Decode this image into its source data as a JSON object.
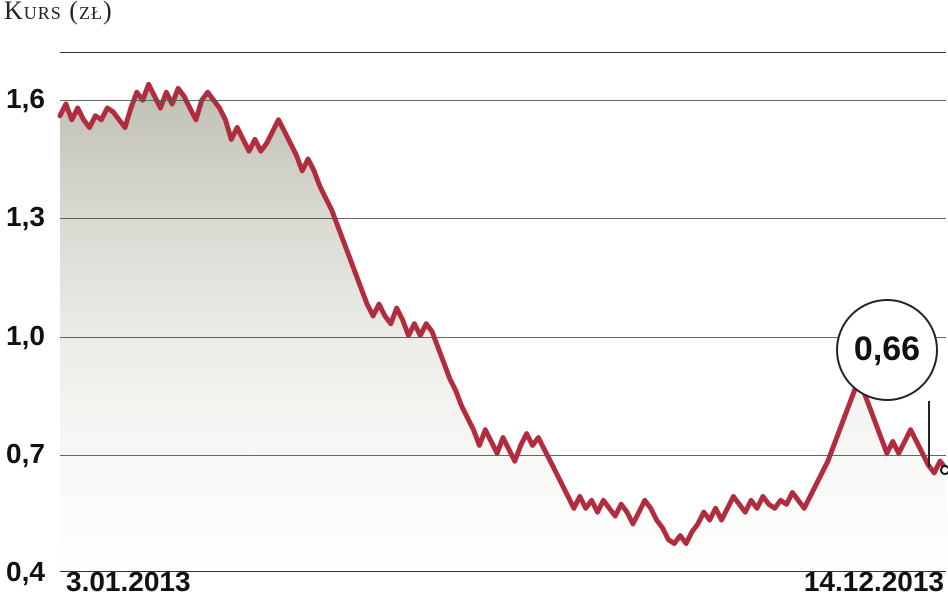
{
  "chart": {
    "type": "line_area",
    "title": "Kurs (zł)",
    "title_fontsize": 26,
    "title_color": "#232323",
    "title_fontvariant": "small-caps",
    "plot_bg": "#ffffff",
    "grid_color": "#555555",
    "axis_line_color": "#333333",
    "y": {
      "ticks": [
        0.4,
        0.7,
        1.0,
        1.3,
        1.6
      ],
      "labels": [
        "0,4",
        "0,7",
        "1,0",
        "1,3",
        "1,6"
      ],
      "min": 0.4,
      "max": 1.72,
      "label_fontsize": 28,
      "label_color": "#111111",
      "label_fontweight": "bold"
    },
    "x": {
      "labels": [
        "3.01.2013",
        "14.12.2013"
      ],
      "label_fontsize": 28,
      "label_color": "#111111",
      "label_fontweight": "bold"
    },
    "series": {
      "line_color": "#b22c3f",
      "line_width": 5,
      "area_top_color": "#9a9a88",
      "area_bottom_color": "#f4f4ef",
      "values": [
        1.56,
        1.59,
        1.55,
        1.58,
        1.55,
        1.53,
        1.56,
        1.55,
        1.58,
        1.57,
        1.55,
        1.53,
        1.58,
        1.62,
        1.6,
        1.64,
        1.61,
        1.58,
        1.62,
        1.59,
        1.63,
        1.61,
        1.58,
        1.55,
        1.6,
        1.62,
        1.6,
        1.58,
        1.55,
        1.5,
        1.53,
        1.5,
        1.47,
        1.5,
        1.47,
        1.49,
        1.52,
        1.55,
        1.52,
        1.49,
        1.46,
        1.42,
        1.45,
        1.42,
        1.38,
        1.35,
        1.32,
        1.28,
        1.24,
        1.2,
        1.16,
        1.12,
        1.08,
        1.05,
        1.08,
        1.05,
        1.03,
        1.07,
        1.04,
        1.0,
        1.03,
        1.0,
        1.03,
        1.01,
        0.97,
        0.93,
        0.89,
        0.86,
        0.82,
        0.79,
        0.76,
        0.72,
        0.76,
        0.73,
        0.7,
        0.74,
        0.71,
        0.68,
        0.72,
        0.75,
        0.72,
        0.74,
        0.71,
        0.68,
        0.65,
        0.62,
        0.59,
        0.56,
        0.59,
        0.56,
        0.58,
        0.55,
        0.58,
        0.56,
        0.54,
        0.57,
        0.55,
        0.52,
        0.55,
        0.58,
        0.56,
        0.53,
        0.51,
        0.48,
        0.47,
        0.49,
        0.47,
        0.5,
        0.52,
        0.55,
        0.53,
        0.56,
        0.53,
        0.56,
        0.59,
        0.57,
        0.55,
        0.58,
        0.56,
        0.59,
        0.57,
        0.56,
        0.58,
        0.57,
        0.6,
        0.58,
        0.56,
        0.59,
        0.62,
        0.65,
        0.68,
        0.72,
        0.76,
        0.8,
        0.84,
        0.88,
        0.86,
        0.82,
        0.78,
        0.74,
        0.7,
        0.73,
        0.7,
        0.73,
        0.76,
        0.73,
        0.7,
        0.67,
        0.65,
        0.68,
        0.66
      ]
    },
    "callout": {
      "value": "0,66",
      "border_color": "#232323",
      "bg_color": "#ffffff",
      "text_color": "#111111",
      "fontsize": 34,
      "diameter": 102,
      "line_color": "#232323"
    },
    "end_marker": {
      "fill": "#ffffff",
      "stroke": "#111111",
      "size": 10
    }
  }
}
